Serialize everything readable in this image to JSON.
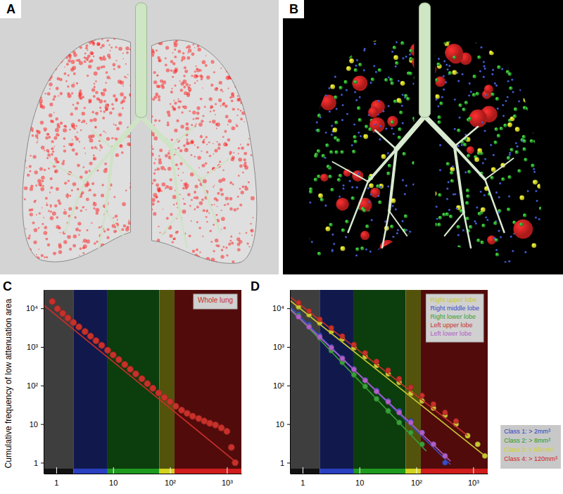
{
  "images": [
    {
      "panel": "A"
    },
    {
      "panel": "B"
    }
  ],
  "classes": [
    {
      "label": "Class 1: > 2mm³",
      "value": 2,
      "color": "#2a3fc0"
    },
    {
      "label": "Class 2: > 8mm³",
      "value": 8,
      "color": "#1e9a1e"
    },
    {
      "label": "Class 3: > 65mm³",
      "value": 65,
      "color": "#d2d21e"
    },
    {
      "label": "Class 4: > 120mm³",
      "value": 120,
      "color": "#d01c1c"
    }
  ],
  "chart_data": [
    {
      "panel": "C",
      "type": "scatter",
      "log": true,
      "legend": "top-right",
      "marker": "circle",
      "ylabel": "Cumulative frequency of low attenuation area",
      "xlim": [
        0.6,
        1800
      ],
      "ylim": [
        0.7,
        30000
      ],
      "xticks": [
        1,
        10,
        {
          "value": 100,
          "label": "10²"
        },
        {
          "value": 1000,
          "label": "10³"
        }
      ],
      "yticks": [
        1,
        10,
        {
          "value": 100,
          "label": "10²"
        },
        {
          "value": 1000,
          "label": "10³"
        },
        {
          "value": 10000,
          "label": "10⁴"
        }
      ],
      "series": [
        {
          "name": "Whole lung",
          "color": "#c8302a",
          "x": [
            0.85,
            1.05,
            1.3,
            1.6,
            2,
            2.5,
            3.2,
            4,
            5,
            6.3,
            8,
            10,
            12.6,
            16,
            20,
            25,
            32,
            40,
            50,
            63,
            80,
            100,
            126,
            160,
            200,
            250,
            320,
            400,
            500,
            630,
            800,
            1000,
            1200,
            1400
          ],
          "values": [
            15000,
            9800,
            7400,
            5600,
            4300,
            3300,
            2500,
            1900,
            1450,
            1100,
            820,
            620,
            470,
            350,
            265,
            200,
            150,
            112,
            85,
            64,
            49,
            38,
            29,
            23,
            19,
            16,
            14,
            12,
            10.5,
            9.5,
            8,
            6.5,
            2.5,
            1
          ],
          "fit": {
            "x": [
              0.6,
              1500
            ],
            "values": [
              12200,
              1
            ]
          }
        }
      ]
    },
    {
      "panel": "D",
      "type": "scatter",
      "log": true,
      "legend": "top-right",
      "marker": "circle",
      "xlim": [
        0.6,
        1800
      ],
      "ylim": [
        0.7,
        30000
      ],
      "xticks": [
        1,
        10,
        {
          "value": 100,
          "label": "10²"
        },
        {
          "value": 1000,
          "label": "10³"
        }
      ],
      "yticks": [
        1,
        10,
        {
          "value": 100,
          "label": "10²"
        },
        {
          "value": 1000,
          "label": "10³"
        },
        {
          "value": 10000,
          "label": "10⁴"
        }
      ],
      "series": [
        {
          "name": "Right upper lobe",
          "color": "#c8c832",
          "x": [
            0.85,
            1.3,
            2,
            3.2,
            5,
            8,
            12.6,
            20,
            32,
            50,
            80,
            126,
            200,
            320,
            500,
            800,
            1200,
            1600
          ],
          "values": [
            11000,
            6800,
            4200,
            2500,
            1600,
            950,
            560,
            330,
            200,
            120,
            62,
            40,
            26,
            17,
            10,
            5,
            3,
            1.5
          ],
          "fit": {
            "x": [
              0.6,
              1700
            ],
            "values": [
              16000,
              1.4
            ]
          }
        },
        {
          "name": "Right middle lobe",
          "color": "#3a4ec8",
          "x": [
            0.85,
            1.3,
            2,
            3.2,
            5,
            8,
            12.6,
            20,
            32,
            50,
            80,
            126,
            200,
            320
          ],
          "values": [
            7000,
            3800,
            2000,
            1000,
            520,
            270,
            140,
            75,
            40,
            22,
            12,
            6,
            3,
            1
          ],
          "fit": {
            "x": [
              0.6,
              400
            ],
            "values": [
              11000,
              0.9
            ]
          }
        },
        {
          "name": "Right lower lobe",
          "color": "#3aa03a",
          "x": [
            0.85,
            1.3,
            2,
            3.2,
            5,
            8,
            12.6,
            20,
            32,
            50,
            80,
            126
          ],
          "values": [
            6500,
            3400,
            1700,
            800,
            400,
            190,
            95,
            45,
            22,
            11,
            6,
            3
          ],
          "fit": {
            "x": [
              0.6,
              150
            ],
            "values": [
              10000,
              2
            ]
          }
        },
        {
          "name": "Left upper lobe",
          "color": "#c8302a",
          "x": [
            0.85,
            1.3,
            2,
            3.2,
            5,
            8,
            12.6,
            20,
            32,
            50,
            80,
            126,
            200,
            320,
            500
          ],
          "values": [
            14000,
            8500,
            5200,
            3100,
            1900,
            1150,
            700,
            420,
            250,
            150,
            90,
            55,
            33,
            20,
            12
          ],
          "fit": {
            "x": [
              0.6,
              800
            ],
            "values": [
              20000,
              5
            ]
          }
        },
        {
          "name": "Left lower lobe",
          "color": "#b060c8",
          "x": [
            0.85,
            1.3,
            2,
            3.2,
            5,
            8,
            12.6,
            20,
            32,
            50,
            80,
            126,
            200,
            320
          ],
          "values": [
            6000,
            3300,
            1800,
            950,
            500,
            260,
            135,
            70,
            38,
            20,
            11,
            6,
            3,
            1.5
          ],
          "fit": {
            "x": [
              0.6,
              400
            ],
            "values": [
              9500,
              1.1
            ]
          }
        }
      ]
    }
  ]
}
